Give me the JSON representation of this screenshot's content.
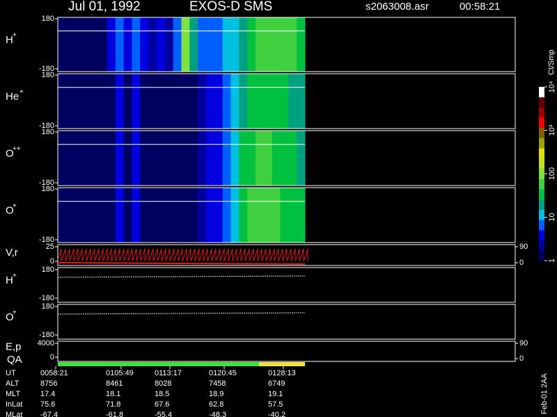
{
  "header": {
    "date": "Jul 01, 1992",
    "instrument": "EXOS-D SMS",
    "file": "s2063008.asr",
    "time": "00:58:21"
  },
  "chart_data": {
    "type": "spectrogram",
    "unit": "Ct/Smp",
    "colormap": [
      "#000060",
      "#0000a0",
      "#0000e0",
      "#0060ff",
      "#00c0e0",
      "#00a080",
      "#00c040",
      "#40d040",
      "#80e040",
      "#c0e020",
      "#e0e000",
      "#a0a000",
      "#806000",
      "#ff0000",
      "#a00000",
      "#600000",
      "#ffffff"
    ],
    "clim": [
      1,
      10000
    ],
    "cticks": [
      1,
      10,
      100,
      {
        "value": 1000,
        "label": "10³"
      },
      {
        "value": 10000,
        "label": "10⁴"
      }
    ],
    "panels": [
      {
        "label": "H",
        "sup": "+",
        "ylim": [
          -180,
          180
        ],
        "yticks": [
          -180,
          180
        ],
        "values": [
          1,
          1,
          1,
          1,
          1,
          1,
          3,
          8,
          4,
          6,
          3,
          2,
          5,
          2,
          6,
          100,
          20,
          8,
          6,
          8,
          10,
          15,
          25,
          40,
          60,
          60,
          50,
          50,
          45,
          40
        ]
      },
      {
        "label": "He",
        "sup": "+",
        "ylim": [
          -180,
          180
        ],
        "yticks": [
          -180,
          180
        ],
        "values": [
          1,
          1,
          1,
          1,
          1,
          1,
          1,
          4,
          1,
          4,
          1,
          1,
          1,
          1,
          1,
          1,
          1,
          2,
          3,
          4,
          6,
          10,
          20,
          30,
          40,
          40,
          35,
          30,
          25,
          20
        ]
      },
      {
        "label": "O",
        "sup": "++",
        "ylim": [
          -180,
          180
        ],
        "yticks": [
          -180,
          180
        ],
        "values": [
          1,
          1,
          1,
          1,
          1,
          1,
          1,
          4,
          1,
          4,
          1,
          1,
          1,
          1,
          1,
          1,
          1,
          2,
          3,
          4,
          6,
          10,
          30,
          40,
          50,
          50,
          40,
          35,
          30,
          25
        ]
      },
      {
        "label": "O",
        "sup": "+",
        "ylim": [
          -180,
          180
        ],
        "yticks": [
          -180,
          180
        ],
        "values": [
          1,
          1,
          1,
          1,
          1,
          1,
          1,
          4,
          1,
          4,
          1,
          1,
          1,
          1,
          1,
          1,
          1,
          2,
          3,
          5,
          8,
          15,
          35,
          50,
          60,
          60,
          50,
          40,
          35,
          30
        ]
      }
    ],
    "lower_panels": [
      {
        "label": "V,r",
        "ylim": [
          0,
          25
        ],
        "yticks": [
          0,
          25
        ],
        "y2lim": [
          0,
          90
        ],
        "y2ticks": [
          0,
          90
        ]
      },
      {
        "label": "H",
        "sup": "+",
        "ylim": [
          -180,
          180
        ],
        "yticks": [
          -180,
          180
        ]
      },
      {
        "label": "O",
        "sup": "+",
        "ylim": [
          -180,
          180
        ],
        "yticks": [
          -180,
          180
        ]
      },
      {
        "label": "E,p",
        "ylim": [
          0,
          4000
        ],
        "yticks": [
          0,
          4000
        ],
        "y2lim": [
          0,
          90
        ],
        "y2ticks": [
          0,
          90
        ]
      }
    ],
    "qa_label": "QA",
    "footer": "Feb-01 2AA",
    "table": {
      "rows": [
        [
          "UT",
          "0058:21",
          "0105:49",
          "0113:17",
          "0120:45",
          "0128:13"
        ],
        [
          "ALT",
          "8756",
          "8461",
          "8028",
          "7458",
          "6749"
        ],
        [
          "MLT",
          "17.4",
          "18.1",
          "18.5",
          "18.9",
          "19.1"
        ],
        [
          "InLat",
          "75.6",
          "71.8",
          "67.6",
          "62.8",
          "57.5"
        ],
        [
          "MLat",
          "-67.4",
          "-61.8",
          "-55.4",
          "-48.3",
          "-40.2"
        ]
      ]
    }
  }
}
